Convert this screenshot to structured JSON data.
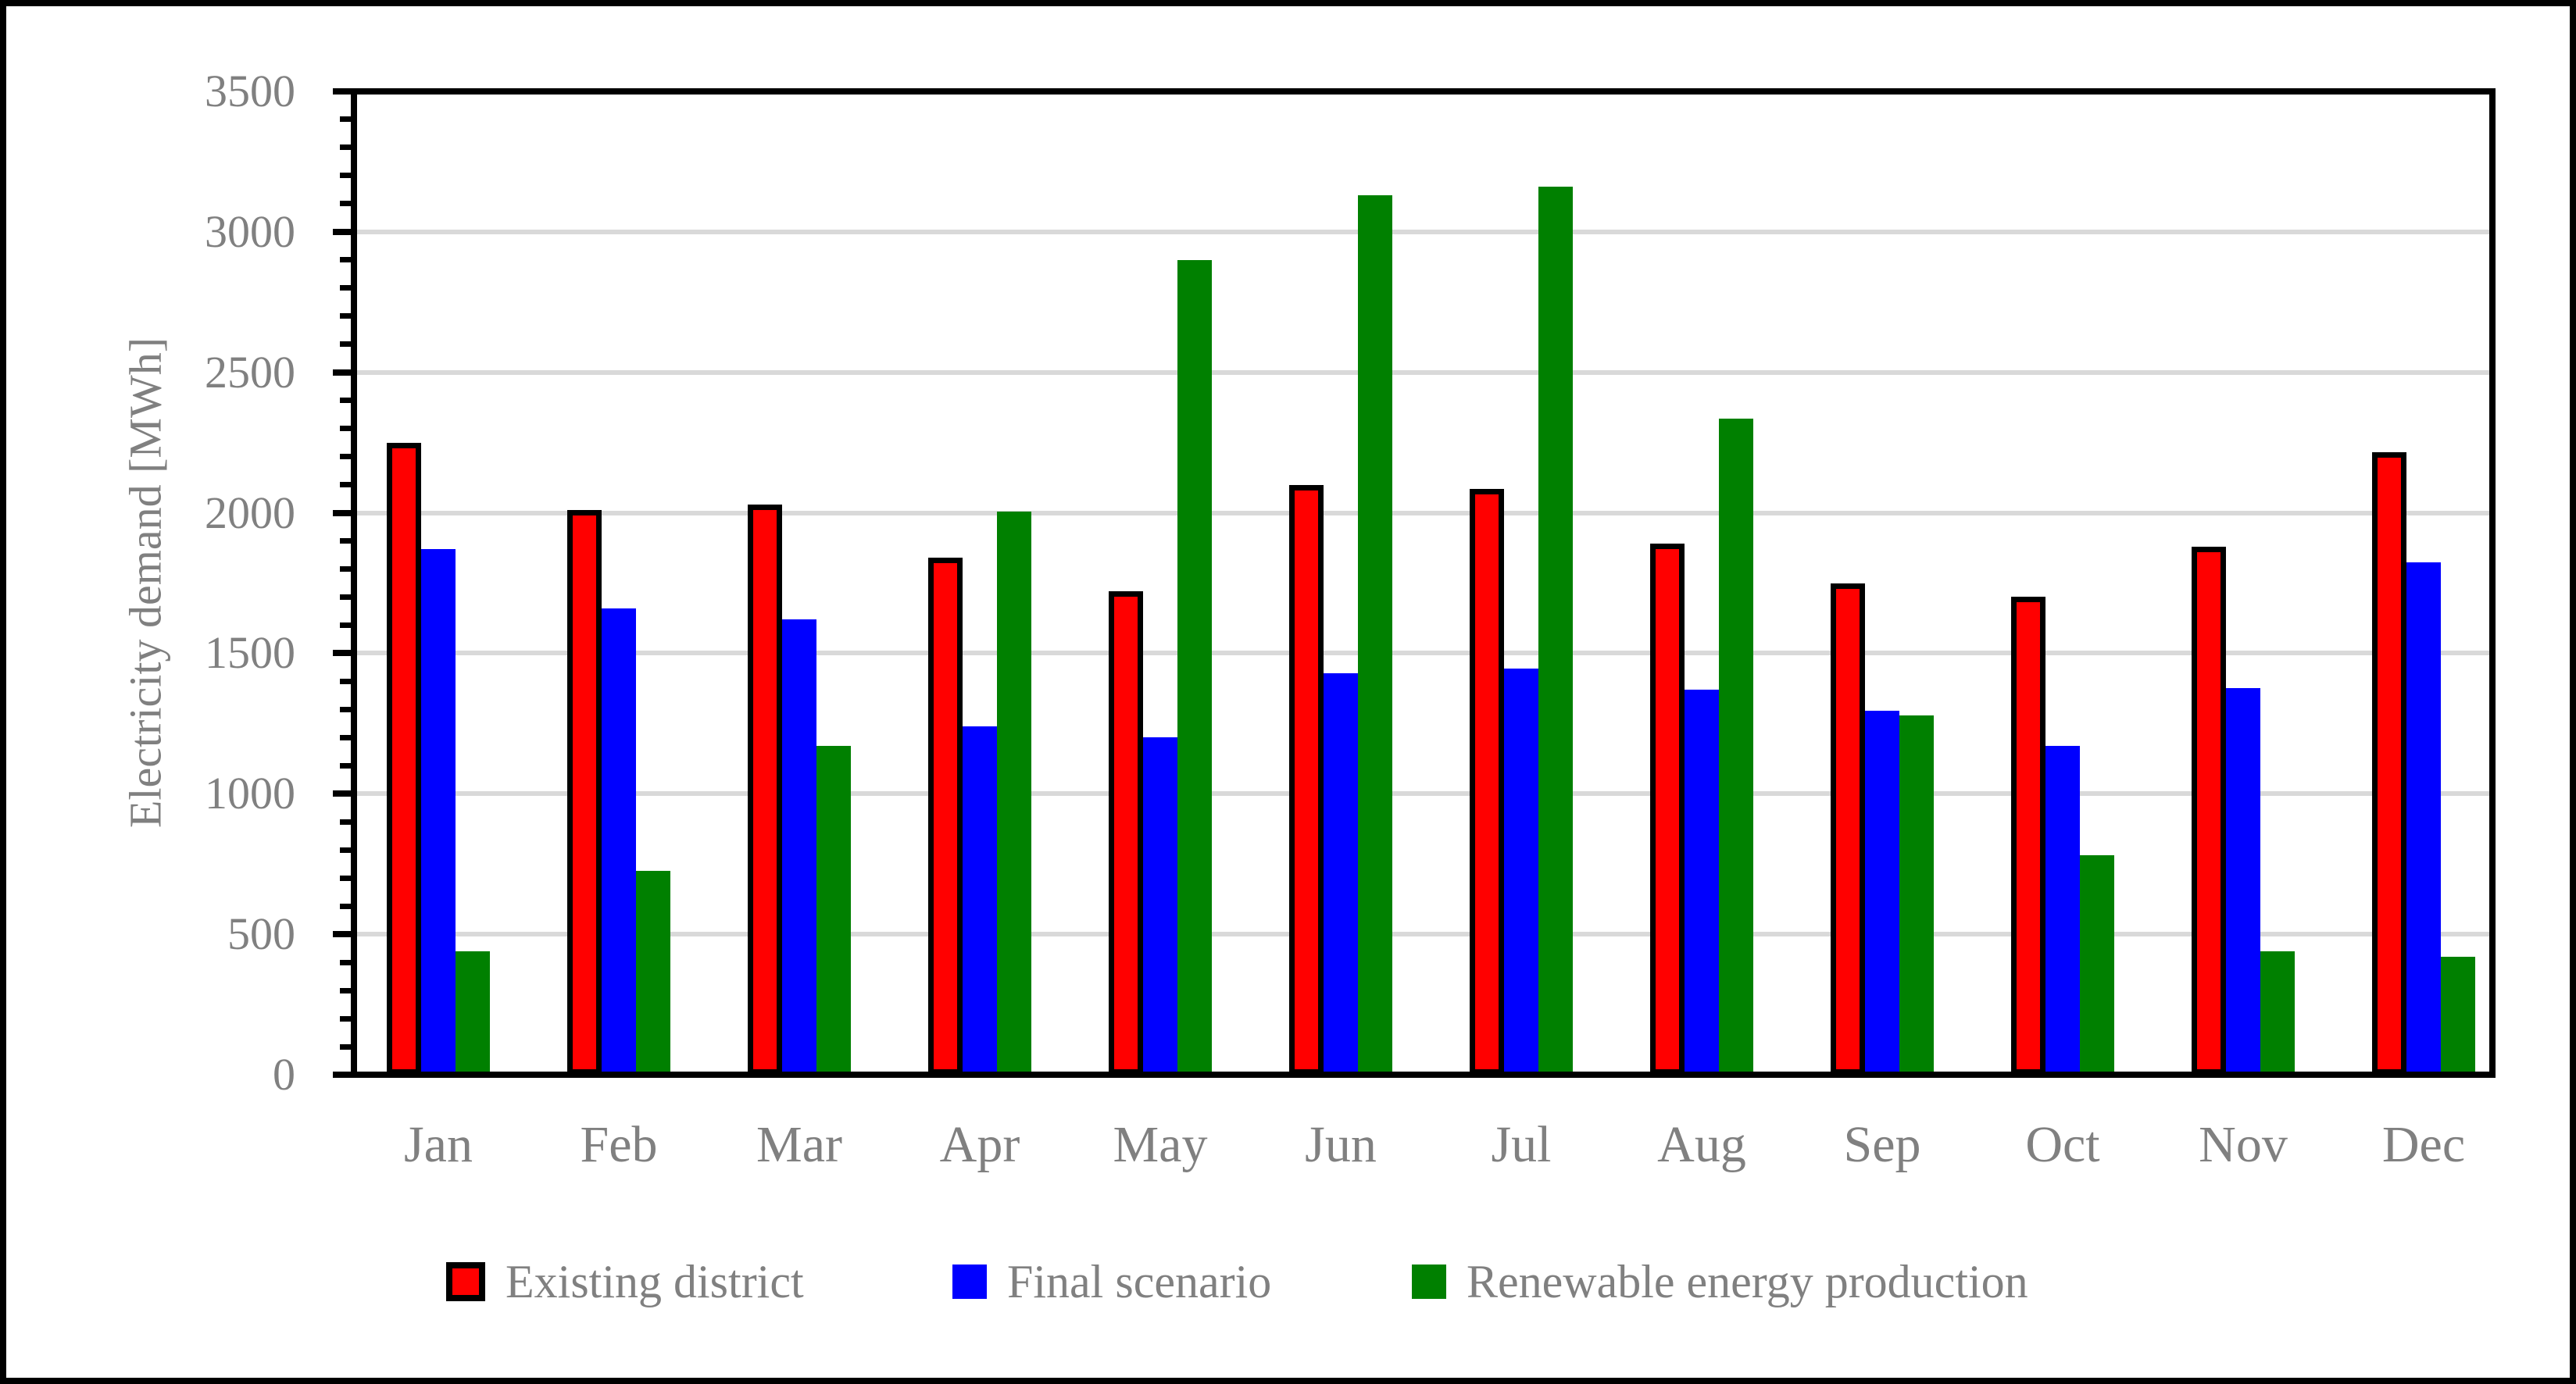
{
  "figure": {
    "background_color": "#FFFFFF",
    "border_color": "#000000"
  },
  "chart_data": {
    "type": "bar",
    "title": "",
    "xlabel": "",
    "ylabel": "Electricity demand [MWh]",
    "ylim": [
      0,
      3500
    ],
    "ytick_interval": 500,
    "minor_tick_interval": 100,
    "ytick_labels": [
      "0",
      "500",
      "1000",
      "1500",
      "2000",
      "2500",
      "3000",
      "3500"
    ],
    "grid": "horizontal-major",
    "legend_position": "bottom",
    "categories": [
      "Jan",
      "Feb",
      "Mar",
      "Apr",
      "May",
      "Jun",
      "Jul",
      "Aug",
      "Sep",
      "Oct",
      "Nov",
      "Dec"
    ],
    "series": [
      {
        "name": "Existing district",
        "color": "#FF0000",
        "border_color": "#000000",
        "values": [
          2250,
          2010,
          2030,
          1840,
          1720,
          2100,
          2085,
          1890,
          1750,
          1700,
          1880,
          2215
        ]
      },
      {
        "name": "Final scenario",
        "color": "#0000FF",
        "border_color": null,
        "values": [
          1870,
          1660,
          1620,
          1240,
          1200,
          1430,
          1445,
          1370,
          1295,
          1170,
          1375,
          1825
        ]
      },
      {
        "name": "Renewable energy production",
        "color": "#008000",
        "border_color": null,
        "values": [
          440,
          725,
          1170,
          2005,
          2900,
          3130,
          3160,
          2335,
          1280,
          780,
          440,
          420
        ]
      }
    ],
    "colors": {
      "gridline": "#D9D9D9",
      "axis": "#000000",
      "label_text": "#808080"
    }
  }
}
